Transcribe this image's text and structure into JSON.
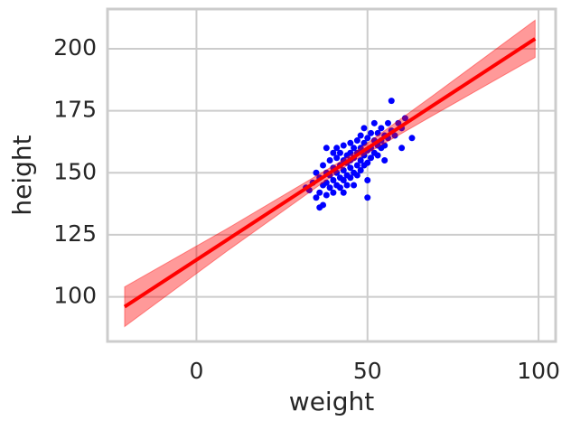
{
  "chart_data": {
    "type": "scatter",
    "xlabel": "weight",
    "ylabel": "height",
    "xlim": [
      -26,
      105
    ],
    "ylim": [
      82,
      216
    ],
    "xticks": [
      0,
      50,
      100
    ],
    "yticks": [
      100,
      125,
      150,
      175,
      200
    ],
    "grid": true,
    "points": {
      "color": "#0000ff",
      "x": [
        33,
        34,
        35,
        35,
        36,
        36,
        37,
        37,
        37,
        38,
        38,
        38,
        39,
        39,
        39,
        40,
        40,
        40,
        40,
        41,
        41,
        41,
        41,
        42,
        42,
        42,
        42,
        43,
        43,
        43,
        43,
        43,
        44,
        44,
        44,
        44,
        45,
        45,
        45,
        45,
        45,
        46,
        46,
        46,
        46,
        47,
        47,
        47,
        47,
        48,
        48,
        48,
        48,
        49,
        49,
        49,
        49,
        50,
        50,
        50,
        50,
        51,
        51,
        51,
        52,
        52,
        52,
        53,
        53,
        53,
        54,
        54,
        54,
        55,
        55,
        56,
        56,
        57,
        57,
        58,
        59,
        60,
        61,
        63,
        50,
        36,
        38,
        32,
        60,
        55
      ],
      "y": [
        143,
        146,
        140,
        150,
        148,
        142,
        145,
        153,
        137,
        150,
        146,
        141,
        155,
        149,
        144,
        152,
        147,
        158,
        142,
        150,
        156,
        145,
        160,
        153,
        148,
        144,
        158,
        151,
        155,
        147,
        161,
        142,
        154,
        149,
        157,
        145,
        152,
        158,
        148,
        162,
        155,
        150,
        156,
        160,
        145,
        153,
        158,
        163,
        149,
        155,
        160,
        151,
        165,
        157,
        162,
        153,
        168,
        159,
        154,
        164,
        147,
        160,
        156,
        166,
        158,
        163,
        170,
        161,
        157,
        166,
        163,
        160,
        168,
        165,
        161,
        170,
        164,
        167,
        179,
        165,
        170,
        168,
        172,
        164,
        140,
        136,
        160,
        144,
        160,
        155
      ]
    },
    "fit": {
      "color": "#ff0000",
      "x": [
        -21,
        9,
        39,
        45,
        69,
        99
      ],
      "y": [
        96,
        123,
        150,
        155.4,
        177,
        204
      ],
      "lower": [
        88,
        118.5,
        148,
        154,
        173,
        196.5
      ],
      "upper": [
        104,
        127.5,
        152,
        157,
        181,
        211.5
      ]
    }
  }
}
